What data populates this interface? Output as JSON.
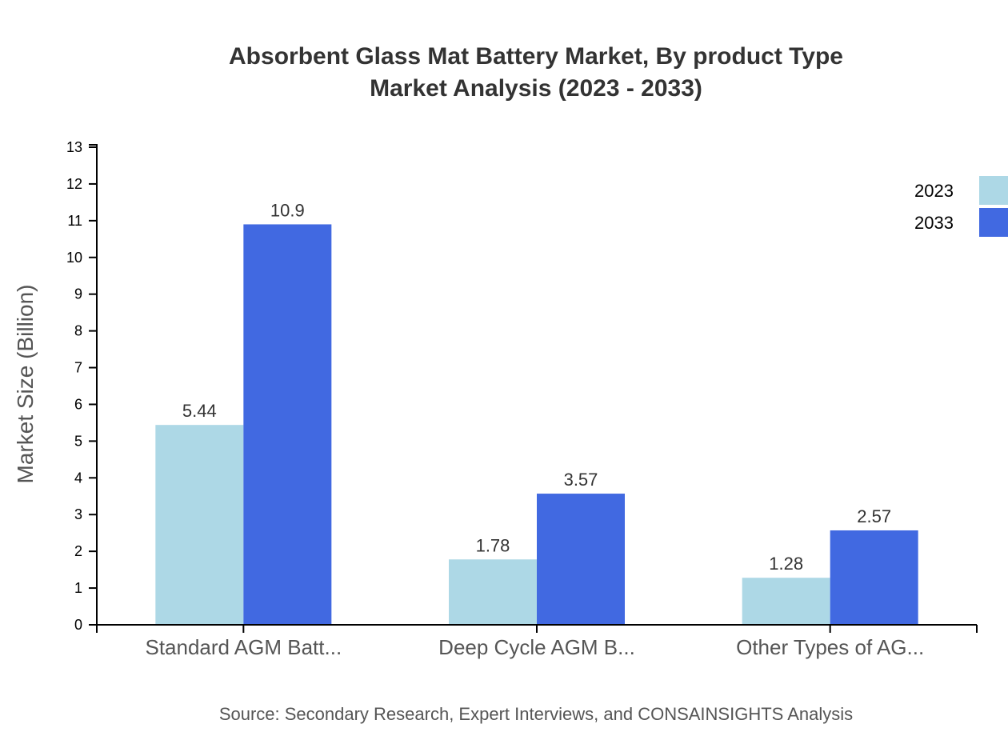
{
  "chart_data": {
    "type": "bar",
    "title": "Absorbent Glass Mat Battery Market, By product Type",
    "subtitle": "Market Analysis (2023 - 2033)",
    "xlabel": "",
    "ylabel": "Market Size (Billion)",
    "ylim": [
      0,
      13
    ],
    "yticks": [
      0,
      1,
      2,
      3,
      4,
      5,
      6,
      7,
      8,
      9,
      10,
      11,
      12,
      13
    ],
    "categories": [
      "Standard AGM Batt...",
      "Deep Cycle AGM B...",
      "Other Types of AG..."
    ],
    "series": [
      {
        "name": "2023",
        "color": "#add8e6",
        "values": [
          5.44,
          1.78,
          1.28
        ]
      },
      {
        "name": "2033",
        "color": "#4169e1",
        "values": [
          10.9,
          3.57,
          2.57
        ]
      }
    ],
    "grid": false,
    "legend_placement": "top-right",
    "source": "Source: Secondary Research, Expert Interviews, and CONSAINSIGHTS Analysis"
  }
}
